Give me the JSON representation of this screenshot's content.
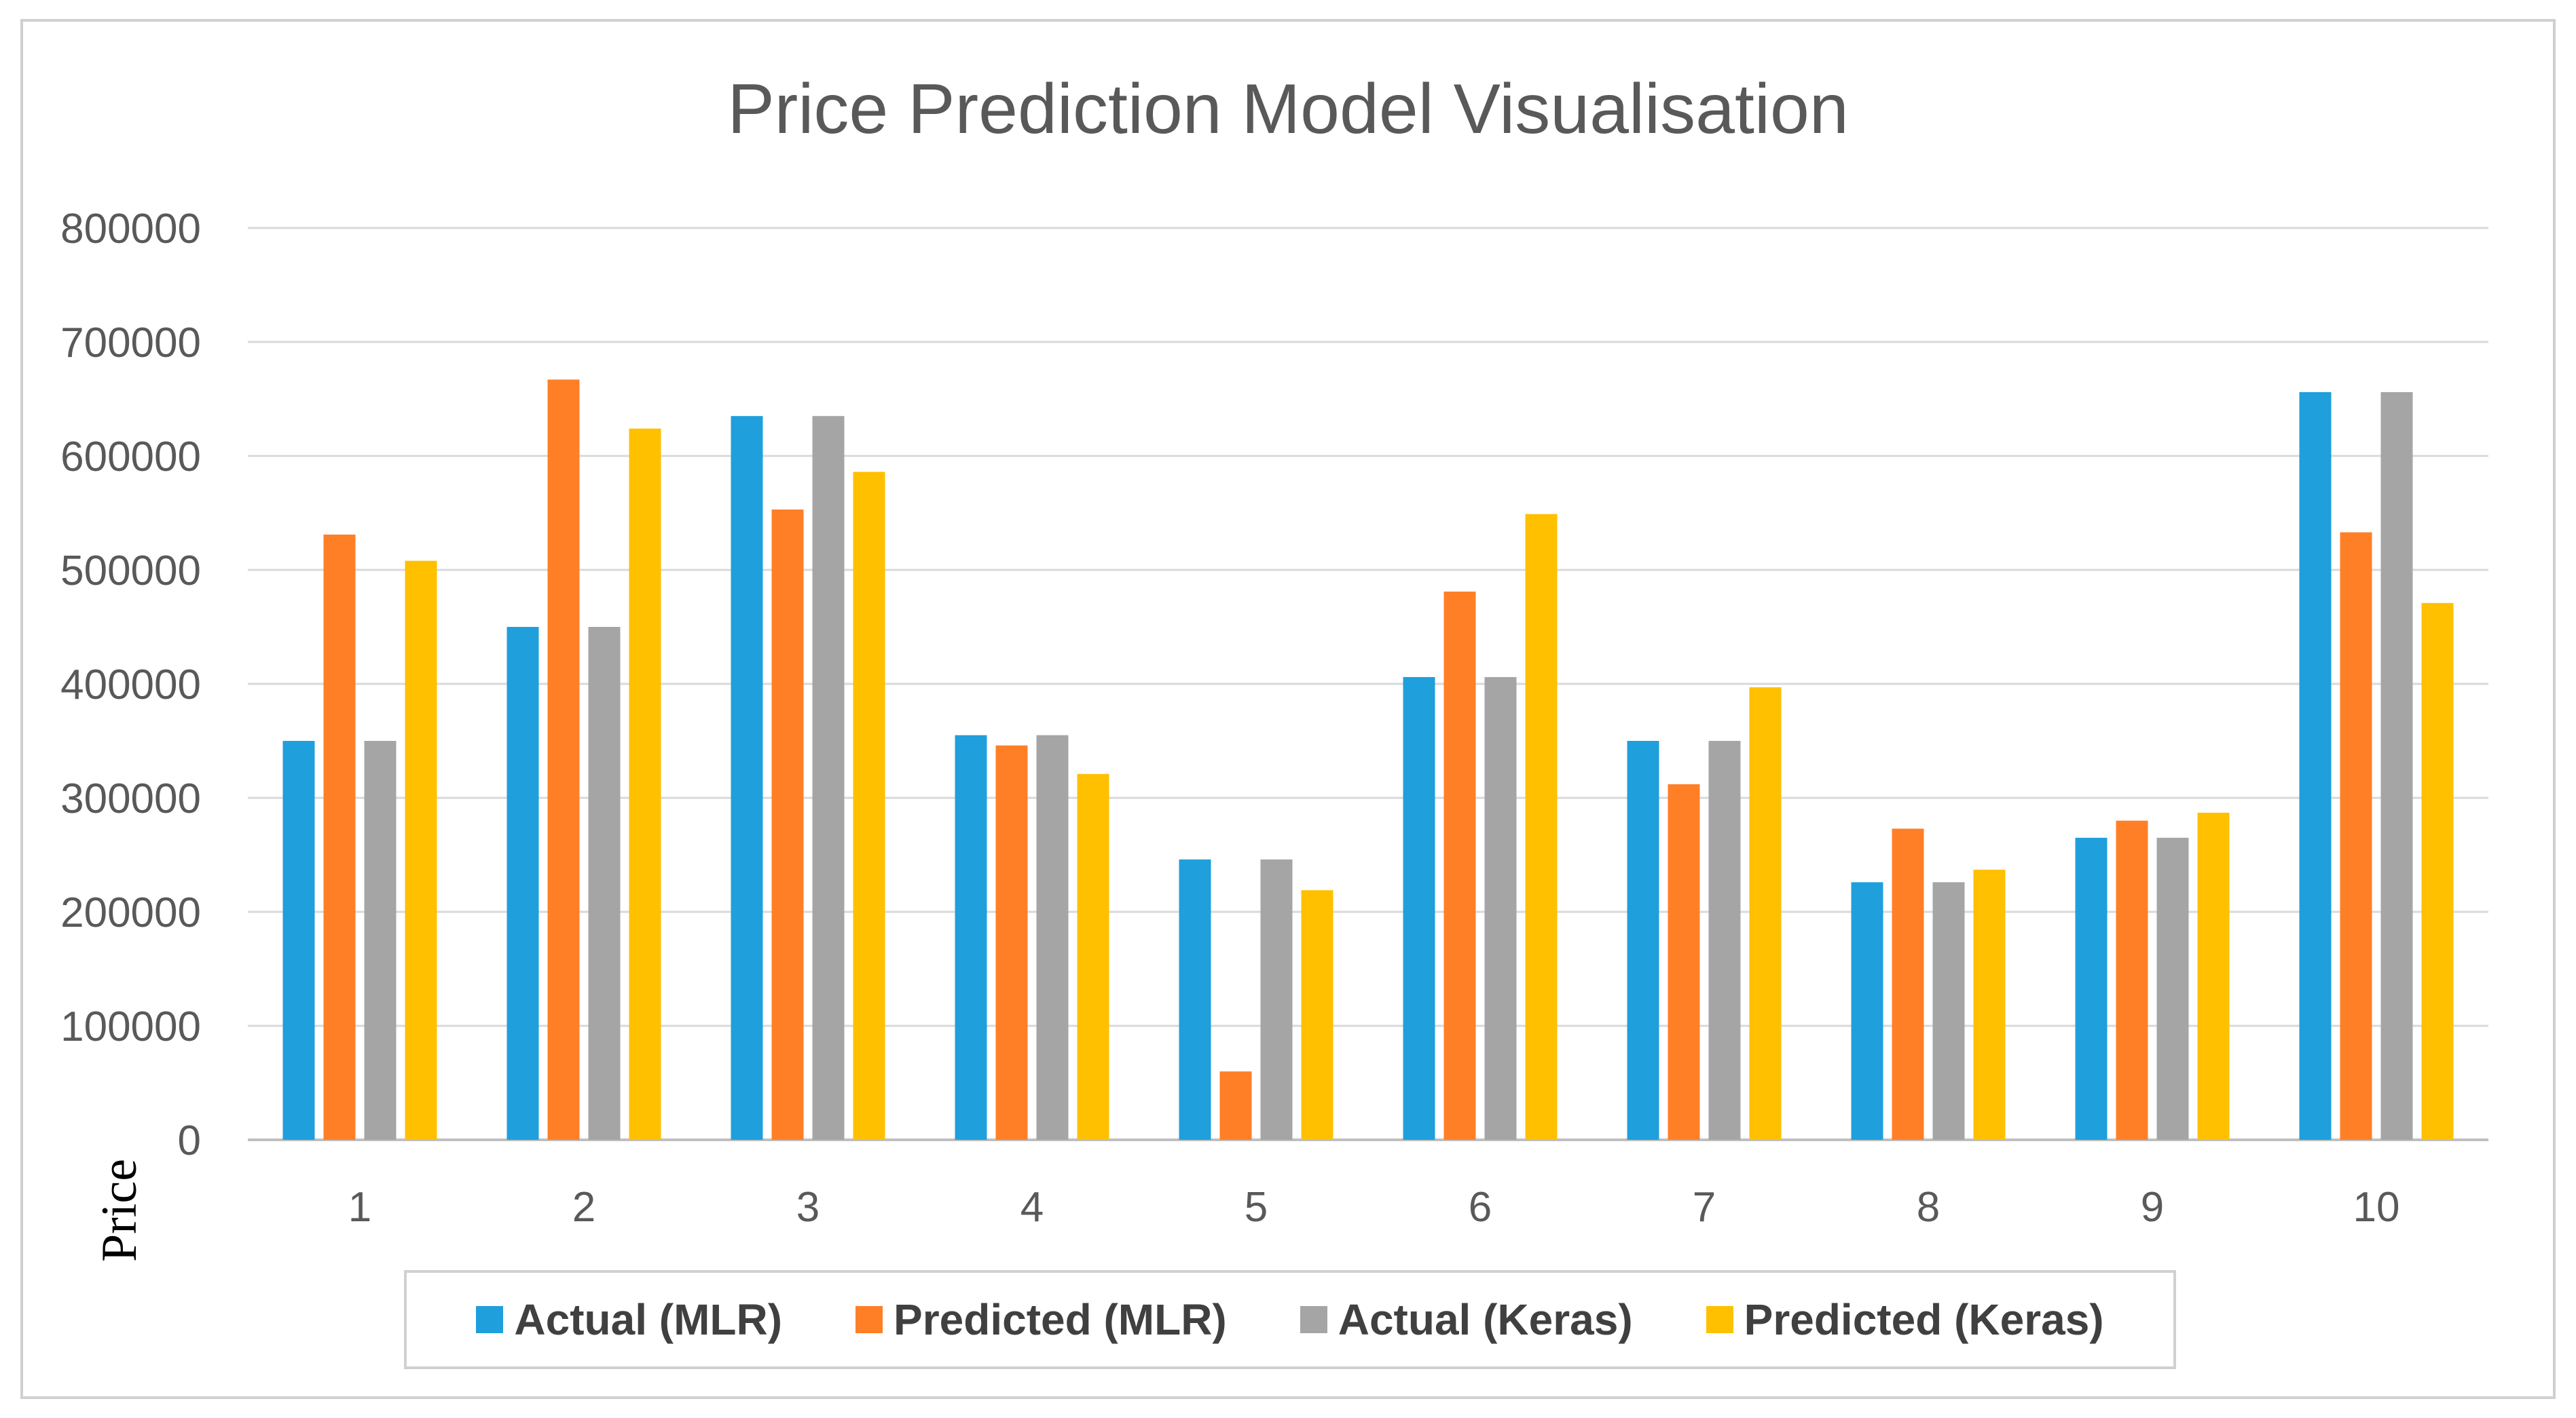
{
  "chart_data": {
    "type": "bar",
    "title": "Price Prediction Model Visualisation",
    "xlabel": "",
    "ylabel": "Price",
    "ylim": [
      0,
      800000
    ],
    "yticks": [
      "800000",
      "700000",
      "600000",
      "500000",
      "400000",
      "300000",
      "200000",
      "100000",
      "0"
    ],
    "ytick_values": [
      800000,
      700000,
      600000,
      500000,
      400000,
      300000,
      200000,
      100000,
      0
    ],
    "categories": [
      "1",
      "2",
      "3",
      "4",
      "5",
      "6",
      "7",
      "8",
      "9",
      "10"
    ],
    "grid": true,
    "legend_position": "bottom",
    "series": [
      {
        "name": "Actual (MLR)",
        "color": "#1F9FDC",
        "values": [
          350000,
          450000,
          635000,
          355000,
          246000,
          406000,
          350000,
          226000,
          265000,
          656000
        ]
      },
      {
        "name": "Predicted (MLR)",
        "color": "#FF7F27",
        "values": [
          531000,
          667000,
          553000,
          346000,
          60000,
          481000,
          312000,
          273000,
          280000,
          533000
        ]
      },
      {
        "name": "Actual (Keras)",
        "color": "#A5A5A5",
        "values": [
          350000,
          450000,
          635000,
          355000,
          246000,
          406000,
          350000,
          226000,
          265000,
          656000
        ]
      },
      {
        "name": "Predicted (Keras)",
        "color": "#FFC000",
        "values": [
          508000,
          624000,
          586000,
          321000,
          219000,
          549000,
          397000,
          237000,
          287000,
          471000
        ]
      }
    ]
  }
}
